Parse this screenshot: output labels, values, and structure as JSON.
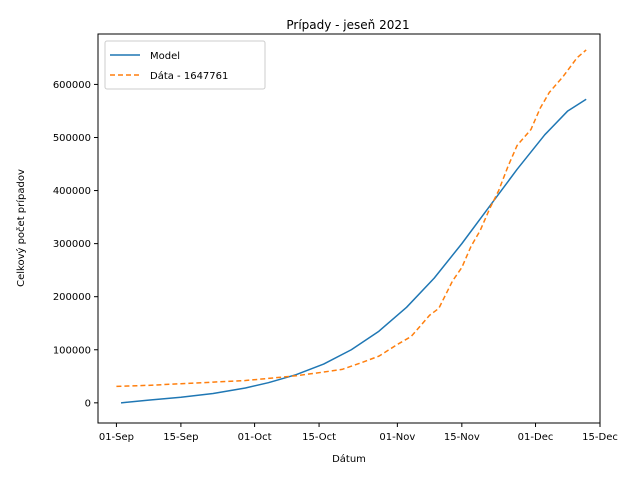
{
  "chart_data": {
    "type": "line",
    "title": "Prípady - jeseň 2021",
    "xlabel": "Dátum",
    "ylabel": "Celkový počet prípadov",
    "x_axis": {
      "min_date": "2021-08-28",
      "max_date": "2021-12-15",
      "ticks": [
        {
          "date": "2021-09-01",
          "label": "01-Sep"
        },
        {
          "date": "2021-09-15",
          "label": "15-Sep"
        },
        {
          "date": "2021-10-01",
          "label": "01-Oct"
        },
        {
          "date": "2021-10-15",
          "label": "15-Oct"
        },
        {
          "date": "2021-11-01",
          "label": "01-Nov"
        },
        {
          "date": "2021-11-15",
          "label": "15-Nov"
        },
        {
          "date": "2021-12-01",
          "label": "01-Dec"
        },
        {
          "date": "2021-12-15",
          "label": "15-Dec"
        }
      ]
    },
    "ylim": [
      -38000,
      695000
    ],
    "y_ticks": [
      0,
      100000,
      200000,
      300000,
      400000,
      500000,
      600000
    ],
    "grid": false,
    "legend": "top-left",
    "series": [
      {
        "name": "Model",
        "color": "#1f77b4",
        "style": "solid",
        "points": [
          [
            "2021-09-02",
            0
          ],
          [
            "2021-09-08",
            5000
          ],
          [
            "2021-09-15",
            10500
          ],
          [
            "2021-09-22",
            17500
          ],
          [
            "2021-09-29",
            28000
          ],
          [
            "2021-10-04",
            38000
          ],
          [
            "2021-10-10",
            53000
          ],
          [
            "2021-10-16",
            73000
          ],
          [
            "2021-10-22",
            100000
          ],
          [
            "2021-10-28",
            135000
          ],
          [
            "2021-11-03",
            180000
          ],
          [
            "2021-11-09",
            235000
          ],
          [
            "2021-11-15",
            300000
          ],
          [
            "2021-11-21",
            370000
          ],
          [
            "2021-11-27",
            440000
          ],
          [
            "2021-12-03",
            505000
          ],
          [
            "2021-12-08",
            550000
          ],
          [
            "2021-12-12",
            572000
          ]
        ]
      },
      {
        "name": "Dáta - 1647761",
        "color": "#ff7f0e",
        "style": "dashed",
        "points": [
          [
            "2021-09-01",
            31000
          ],
          [
            "2021-09-08",
            33000
          ],
          [
            "2021-09-15",
            36000
          ],
          [
            "2021-09-22",
            39000
          ],
          [
            "2021-09-29",
            42000
          ],
          [
            "2021-10-04",
            46000
          ],
          [
            "2021-10-10",
            51000
          ],
          [
            "2021-10-16",
            58000
          ],
          [
            "2021-10-20",
            63000
          ],
          [
            "2021-10-24",
            75000
          ],
          [
            "2021-10-28",
            88000
          ],
          [
            "2021-11-01",
            110000
          ],
          [
            "2021-11-04",
            125000
          ],
          [
            "2021-11-08",
            165000
          ],
          [
            "2021-11-10",
            178000
          ],
          [
            "2021-11-13",
            230000
          ],
          [
            "2021-11-15",
            255000
          ],
          [
            "2021-11-17",
            295000
          ],
          [
            "2021-11-19",
            325000
          ],
          [
            "2021-11-21",
            365000
          ],
          [
            "2021-11-23",
            400000
          ],
          [
            "2021-11-25",
            445000
          ],
          [
            "2021-11-27",
            485000
          ],
          [
            "2021-11-30",
            515000
          ],
          [
            "2021-12-02",
            555000
          ],
          [
            "2021-12-04",
            585000
          ],
          [
            "2021-12-07",
            615000
          ],
          [
            "2021-12-10",
            650000
          ],
          [
            "2021-12-12",
            665000
          ]
        ]
      }
    ]
  }
}
